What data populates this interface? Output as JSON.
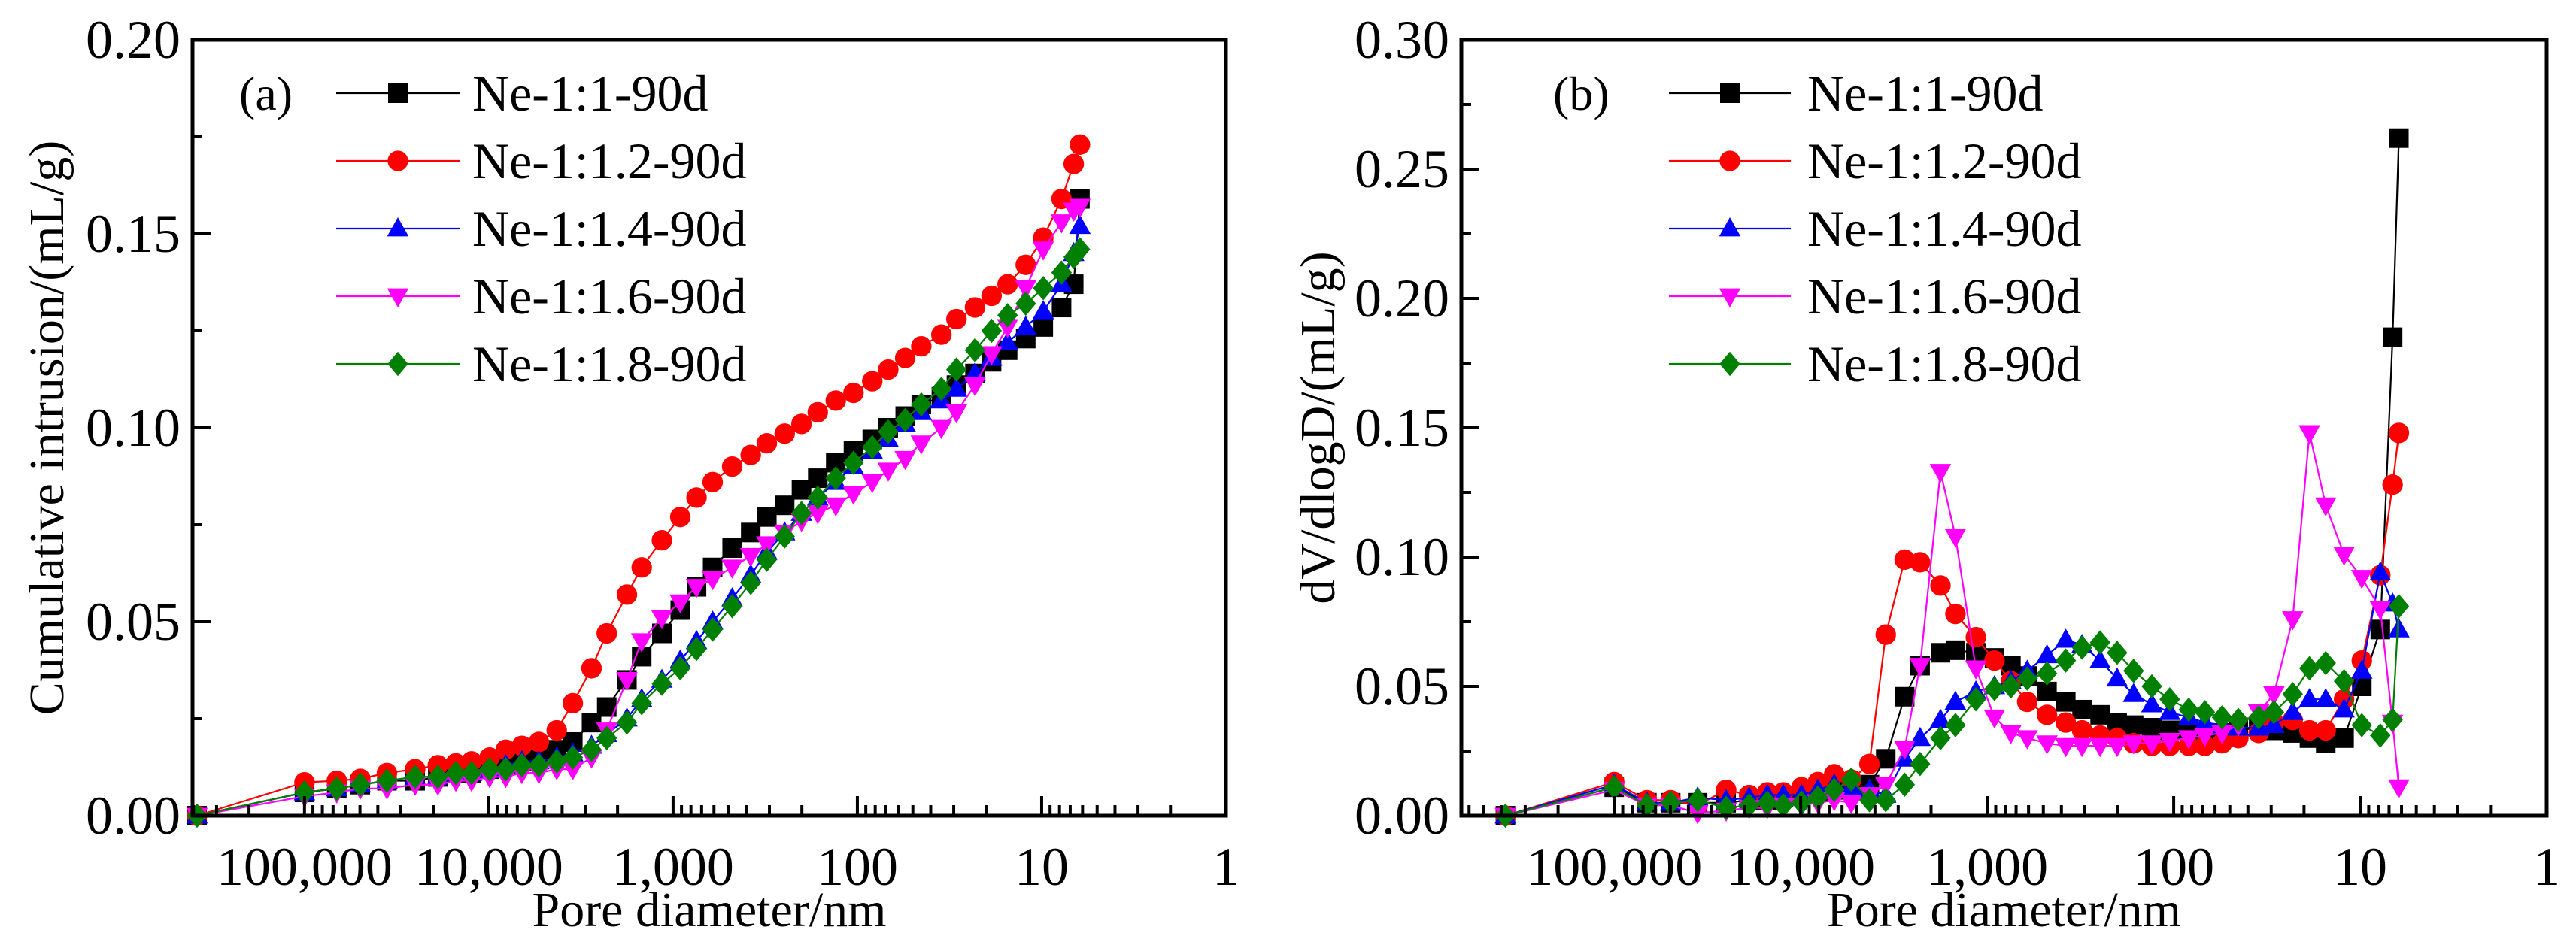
{
  "chart_data": [
    {
      "type": "line",
      "panel_label": "(a)",
      "xlabel": "Pore diameter/nm",
      "ylabel": "Cumulative intrusion/(mL/g)",
      "xscale": "log-reversed",
      "xlim": [
        405000,
        1
      ],
      "ylim": [
        0,
        0.2
      ],
      "x_ticks": [
        {
          "v": 100000,
          "label": "100,000"
        },
        {
          "v": 10000,
          "label": "10,000"
        },
        {
          "v": 1000,
          "label": "1,000"
        },
        {
          "v": 100,
          "label": "100"
        },
        {
          "v": 10,
          "label": "10"
        },
        {
          "v": 1,
          "label": "1"
        }
      ],
      "y_ticks": [
        {
          "v": 0,
          "label": "0.00"
        },
        {
          "v": 0.05,
          "label": "0.05"
        },
        {
          "v": 0.1,
          "label": "0.10"
        },
        {
          "v": 0.15,
          "label": "0.15"
        },
        {
          "v": 0.2,
          "label": "0.20"
        }
      ],
      "legend_position": "top-left",
      "x": [
        383000,
        100000,
        66800,
        49800,
        35700,
        25100,
        18900,
        15100,
        12400,
        9900,
        8090,
        6610,
        5350,
        4280,
        3500,
        2770,
        2290,
        1780,
        1480,
        1150,
        914,
        746,
        610,
        478,
        379,
        310,
        248,
        201,
        164,
        131,
        105,
        83,
        68,
        55,
        45,
        35,
        29,
        23,
        18.7,
        15.3,
        12.2,
        9.8,
        7.8,
        6.7,
        6.2
      ],
      "series": [
        {
          "name": "Ne-1:1-90d",
          "color": "#000000",
          "marker": "square",
          "values": [
            0,
            0.006,
            0.007,
            0.008,
            0.009,
            0.009,
            0.01,
            0.011,
            0.011,
            0.012,
            0.013,
            0.014,
            0.016,
            0.017,
            0.019,
            0.024,
            0.028,
            0.035,
            0.041,
            0.047,
            0.053,
            0.059,
            0.064,
            0.069,
            0.073,
            0.077,
            0.08,
            0.084,
            0.087,
            0.091,
            0.094,
            0.097,
            0.1,
            0.103,
            0.106,
            0.108,
            0.111,
            0.114,
            0.117,
            0.12,
            0.123,
            0.126,
            0.131,
            0.137,
            0.159
          ]
        },
        {
          "name": "Ne-1:1.2-90d",
          "color": "#ff0000",
          "marker": "circle",
          "values": [
            0,
            0.0086,
            0.009,
            0.0095,
            0.011,
            0.012,
            0.013,
            0.0135,
            0.014,
            0.015,
            0.017,
            0.018,
            0.019,
            0.022,
            0.029,
            0.038,
            0.047,
            0.057,
            0.064,
            0.071,
            0.077,
            0.082,
            0.086,
            0.09,
            0.093,
            0.096,
            0.0985,
            0.101,
            0.104,
            0.107,
            0.109,
            0.112,
            0.115,
            0.118,
            0.121,
            0.124,
            0.128,
            0.131,
            0.134,
            0.137,
            0.142,
            0.149,
            0.159,
            0.168,
            0.173
          ]
        },
        {
          "name": "Ne-1:1.4-90d",
          "color": "#0000ff",
          "marker": "triangle-up",
          "values": [
            0,
            0.006,
            0.007,
            0.008,
            0.009,
            0.01,
            0.01,
            0.011,
            0.011,
            0.012,
            0.013,
            0.014,
            0.014,
            0.015,
            0.016,
            0.018,
            0.021,
            0.025,
            0.03,
            0.035,
            0.04,
            0.045,
            0.05,
            0.056,
            0.062,
            0.068,
            0.073,
            0.078,
            0.082,
            0.086,
            0.09,
            0.094,
            0.097,
            0.101,
            0.104,
            0.107,
            0.11,
            0.114,
            0.118,
            0.122,
            0.126,
            0.13,
            0.137,
            0.145,
            0.152
          ]
        },
        {
          "name": "Ne-1:1.6-90d",
          "color": "#ff00ff",
          "marker": "triangle-down",
          "values": [
            0,
            0.005,
            0.006,
            0.007,
            0.007,
            0.008,
            0.008,
            0.009,
            0.009,
            0.01,
            0.01,
            0.011,
            0.011,
            0.012,
            0.012,
            0.015,
            0.022,
            0.035,
            0.045,
            0.051,
            0.055,
            0.059,
            0.061,
            0.064,
            0.067,
            0.07,
            0.073,
            0.076,
            0.078,
            0.08,
            0.083,
            0.086,
            0.089,
            0.092,
            0.096,
            0.1,
            0.104,
            0.111,
            0.119,
            0.126,
            0.136,
            0.146,
            0.153,
            0.156,
            0.157
          ]
        },
        {
          "name": "Ne-1:1.8-90d",
          "color": "#008000",
          "marker": "diamond",
          "values": [
            0,
            0.006,
            0.007,
            0.008,
            0.009,
            0.01,
            0.01,
            0.011,
            0.011,
            0.012,
            0.012,
            0.013,
            0.013,
            0.014,
            0.015,
            0.017,
            0.02,
            0.024,
            0.029,
            0.034,
            0.038,
            0.043,
            0.048,
            0.054,
            0.06,
            0.066,
            0.072,
            0.078,
            0.082,
            0.087,
            0.091,
            0.095,
            0.099,
            0.102,
            0.106,
            0.11,
            0.115,
            0.12,
            0.125,
            0.129,
            0.132,
            0.136,
            0.14,
            0.144,
            0.146
          ]
        }
      ]
    },
    {
      "type": "line",
      "panel_label": "(b)",
      "xlabel": "Pore diameter/nm",
      "ylabel": "dV/dlogD/(mL/g)",
      "xscale": "log-reversed",
      "xlim": [
        660000,
        1
      ],
      "ylim": [
        0,
        0.3
      ],
      "x_ticks": [
        {
          "v": 100000,
          "label": "100,000"
        },
        {
          "v": 10000,
          "label": "10,000"
        },
        {
          "v": 1000,
          "label": "1,000"
        },
        {
          "v": 100,
          "label": "100"
        },
        {
          "v": 10,
          "label": "10"
        },
        {
          "v": 1,
          "label": "1"
        }
      ],
      "y_ticks": [
        {
          "v": 0,
          "label": "0.00"
        },
        {
          "v": 0.05,
          "label": "0.05"
        },
        {
          "v": 0.1,
          "label": "0.10"
        },
        {
          "v": 0.15,
          "label": "0.15"
        },
        {
          "v": 0.2,
          "label": "0.20"
        },
        {
          "v": 0.25,
          "label": "0.25"
        },
        {
          "v": 0.3,
          "label": "0.30"
        }
      ],
      "legend_position": "top-left",
      "x": [
        383000,
        100000,
        66800,
        49800,
        35700,
        25100,
        18900,
        15100,
        12400,
        9900,
        8090,
        6610,
        5350,
        4280,
        3500,
        2770,
        2290,
        1780,
        1480,
        1150,
        914,
        746,
        610,
        478,
        379,
        310,
        248,
        201,
        164,
        131,
        105,
        83,
        68,
        55,
        45,
        35,
        29,
        23,
        18.7,
        15.3,
        12.2,
        9.8,
        7.8,
        6.7,
        6.2
      ],
      "series": [
        {
          "name": "Ne-1:1-90d",
          "color": "#000000",
          "marker": "square",
          "values": [
            0,
            0.011,
            0.005,
            0.005,
            0.005,
            0.005,
            0.006,
            0.006,
            0.007,
            0.008,
            0.009,
            0.01,
            0.011,
            0.012,
            0.022,
            0.046,
            0.058,
            0.063,
            0.064,
            0.063,
            0.061,
            0.058,
            0.054,
            0.048,
            0.044,
            0.041,
            0.039,
            0.036,
            0.035,
            0.034,
            0.033,
            0.033,
            0.032,
            0.032,
            0.033,
            0.034,
            0.033,
            0.032,
            0.03,
            0.028,
            0.03,
            0.05,
            0.072,
            0.185,
            0.262
          ]
        },
        {
          "name": "Ne-1:1.2-90d",
          "color": "#ff0000",
          "marker": "circle",
          "values": [
            0,
            0.013,
            0.006,
            0.006,
            0.004,
            0.01,
            0.008,
            0.009,
            0.009,
            0.011,
            0.013,
            0.016,
            0.014,
            0.02,
            0.07,
            0.099,
            0.098,
            0.089,
            0.078,
            0.069,
            0.06,
            0.052,
            0.044,
            0.039,
            0.036,
            0.033,
            0.031,
            0.03,
            0.028,
            0.027,
            0.027,
            0.027,
            0.027,
            0.028,
            0.03,
            0.032,
            0.036,
            0.037,
            0.033,
            0.033,
            0.045,
            0.06,
            0.093,
            0.128,
            0.148
          ]
        },
        {
          "name": "Ne-1:1.4-90d",
          "color": "#0000ff",
          "marker": "triangle-up",
          "values": [
            0,
            0.012,
            0.005,
            0.005,
            0.007,
            0.006,
            0.007,
            0.008,
            0.008,
            0.008,
            0.01,
            0.012,
            0.011,
            0.01,
            0.008,
            0.022,
            0.03,
            0.037,
            0.044,
            0.048,
            0.05,
            0.052,
            0.056,
            0.062,
            0.068,
            0.066,
            0.06,
            0.053,
            0.047,
            0.043,
            0.04,
            0.038,
            0.036,
            0.035,
            0.034,
            0.034,
            0.035,
            0.04,
            0.045,
            0.045,
            0.041,
            0.056,
            0.094,
            0.082,
            0.072
          ]
        },
        {
          "name": "Ne-1:1.6-90d",
          "color": "#ff00ff",
          "marker": "triangle-down",
          "values": [
            0,
            0.01,
            0.004,
            0.004,
            0.001,
            0.002,
            0.003,
            0.003,
            0.004,
            0.004,
            0.005,
            0.006,
            0.005,
            0.008,
            0.012,
            0.026,
            0.058,
            0.133,
            0.108,
            0.057,
            0.038,
            0.032,
            0.03,
            0.028,
            0.027,
            0.027,
            0.027,
            0.027,
            0.028,
            0.028,
            0.029,
            0.03,
            0.031,
            0.032,
            0.035,
            0.04,
            0.047,
            0.076,
            0.148,
            0.12,
            0.101,
            0.092,
            0.08,
            0.036,
            0.011
          ]
        },
        {
          "name": "Ne-1:1.8-90d",
          "color": "#008000",
          "marker": "diamond",
          "values": [
            0,
            0.011,
            0.004,
            0.005,
            0.006,
            0.003,
            0.004,
            0.005,
            0.004,
            0.005,
            0.007,
            0.01,
            0.014,
            0.006,
            0.006,
            0.012,
            0.02,
            0.03,
            0.035,
            0.045,
            0.049,
            0.05,
            0.053,
            0.055,
            0.06,
            0.065,
            0.067,
            0.063,
            0.056,
            0.05,
            0.045,
            0.041,
            0.04,
            0.038,
            0.037,
            0.038,
            0.04,
            0.047,
            0.057,
            0.059,
            0.052,
            0.035,
            0.031,
            0.037,
            0.081
          ]
        }
      ]
    }
  ]
}
